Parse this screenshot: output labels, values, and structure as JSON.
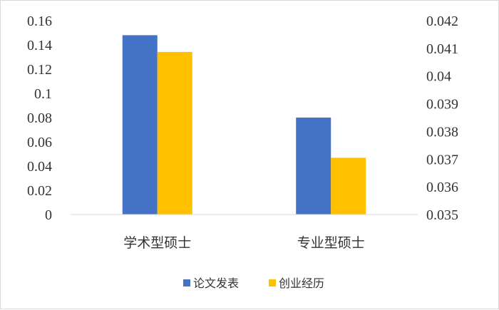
{
  "chart_data": {
    "type": "bar",
    "categories": [
      "学术型硕士",
      "专业型硕士"
    ],
    "series": [
      {
        "name": "论文发表",
        "axis": "left",
        "color": "#4472C4",
        "values": [
          0.148,
          0.08
        ]
      },
      {
        "name": "创业经历",
        "axis": "right",
        "color": "#FFC000",
        "values": [
          0.04087,
          0.03705
        ]
      }
    ],
    "y_left": {
      "ylim": [
        0,
        0.16
      ],
      "ticks": [
        "0",
        "0.02",
        "0.04",
        "0.06",
        "0.08",
        "0.1",
        "0.12",
        "0.14",
        "0.16"
      ]
    },
    "y_right": {
      "ylim": [
        0.035,
        0.042
      ],
      "ticks": [
        "0.035",
        "0.036",
        "0.037",
        "0.038",
        "0.039",
        "0.04",
        "0.041",
        "0.042"
      ]
    },
    "grid": false,
    "legend_position": "bottom"
  }
}
